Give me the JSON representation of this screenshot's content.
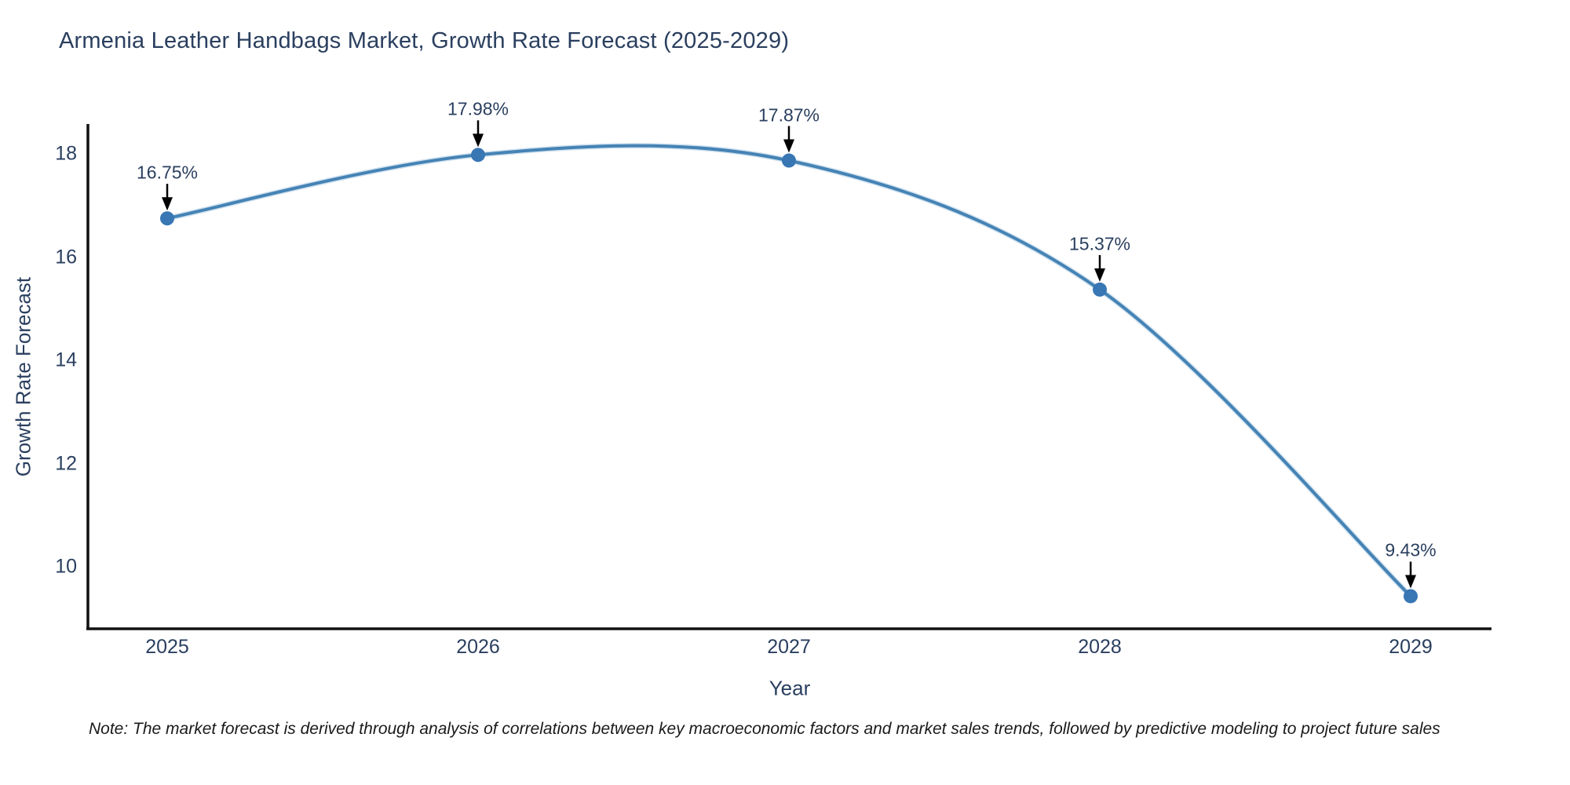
{
  "title": "Armenia Leather Handbags Market, Growth Rate Forecast (2025-2029)",
  "note": "Note: The market forecast is derived through analysis of correlations between key macroeconomic factors and market sales trends, followed by predictive modeling to project future sales",
  "chart_data": {
    "type": "line",
    "line_shape": "spline",
    "title": "Armenia Leather Handbags Market, Growth Rate Forecast (2025-2029)",
    "xlabel": "Year",
    "ylabel": "Growth Rate Forecast",
    "x": [
      2025,
      2026,
      2027,
      2028,
      2029
    ],
    "values": [
      16.75,
      17.98,
      17.87,
      15.37,
      9.43
    ],
    "point_labels": [
      "16.75%",
      "17.98%",
      "17.87%",
      "15.37%",
      "9.43%"
    ],
    "xticks": [
      "2025",
      "2026",
      "2027",
      "2028",
      "2029"
    ],
    "yticks": [
      10,
      12,
      14,
      16,
      18
    ],
    "ylim": [
      8.8,
      18.6
    ],
    "grid": false,
    "legend": false,
    "annotation_style": "black-down-arrow",
    "colors": {
      "line": "#4583b5",
      "marker": "#3876b4",
      "arrow": "#000000",
      "axis": "#111111",
      "text": "#2a3f5f",
      "background": "#ffffff"
    }
  }
}
